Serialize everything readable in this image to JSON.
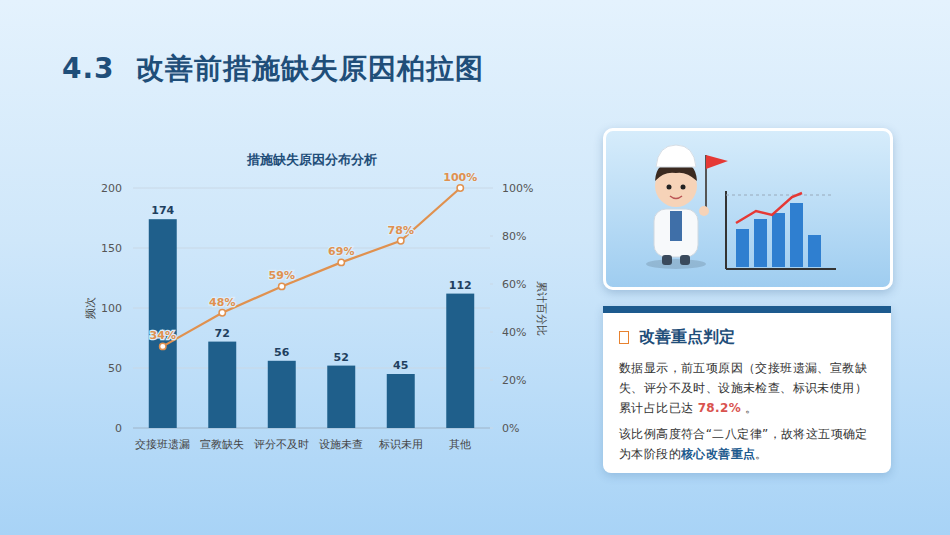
{
  "page": {
    "title": "4.3  改善前措施缺失原因柏拉图",
    "card": {
      "heading": "改善重点判定",
      "paragraphs": [
        {
          "text": "数据显示，前五项原因（交接班遗漏、宣教缺失、评分不及时、设施未检查、标识未使用）累计占比已达 ",
          "highlight": "78.2%",
          "after": " 。"
        },
        {
          "text": "该比例高度符合“二八定律”，故将这五项确定为本阶段的",
          "highlight": "核心改善重点",
          "after": "。"
        }
      ]
    }
  },
  "chart_data": {
    "type": "bar",
    "title": "措施缺失原因分布分析",
    "categories": [
      "交接班遗漏",
      "宣教缺失",
      "评分不及时",
      "设施未查",
      "标识未用",
      "其他"
    ],
    "ylabel": "频次",
    "y2label": "累计百分比",
    "ylim": [
      0,
      200
    ],
    "yticks": [
      0,
      50,
      100,
      150,
      200
    ],
    "y2lim": [
      0,
      100
    ],
    "y2ticks": [
      {
        "value": 0,
        "label": "0%"
      },
      {
        "value": 20,
        "label": "20%"
      },
      {
        "value": 40,
        "label": "40%"
      },
      {
        "value": 60,
        "label": "60%"
      },
      {
        "value": 80,
        "label": "80%"
      },
      {
        "value": 100,
        "label": "100%"
      }
    ],
    "grid": true,
    "data_labels": true,
    "series": [
      {
        "type": "bar",
        "color": "#1f5f8b",
        "values": [
          174,
          72,
          56,
          52,
          45,
          112
        ]
      },
      {
        "type": "line",
        "axis": "y2",
        "color": "#e0914f",
        "marker": "circle",
        "values": [
          34,
          48,
          59,
          69,
          78,
          100
        ],
        "value_labels": [
          "34%",
          "48%",
          "59%",
          "69%",
          "78%",
          "100%"
        ]
      }
    ]
  }
}
